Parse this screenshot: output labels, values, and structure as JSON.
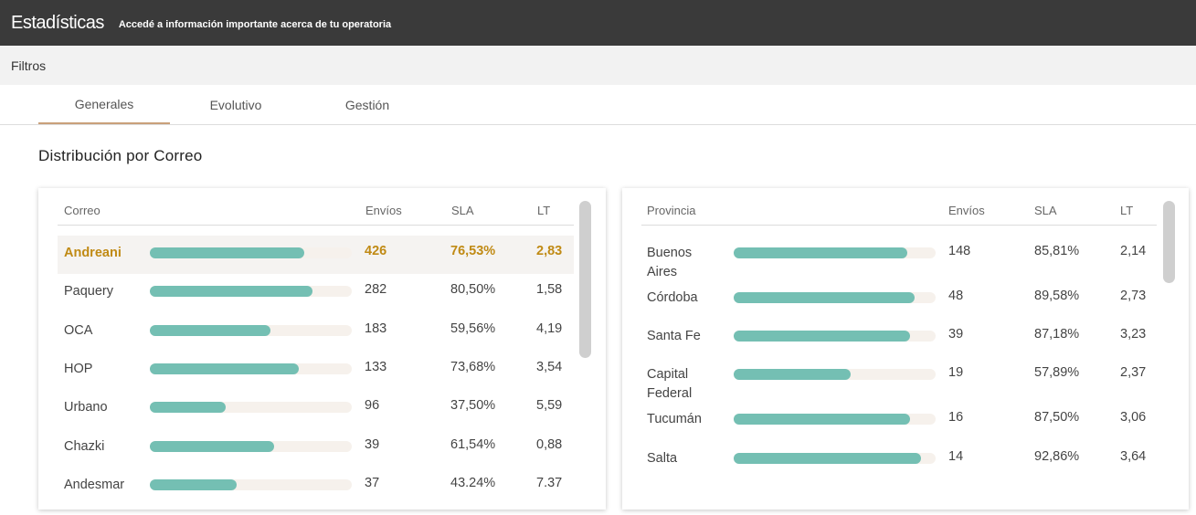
{
  "header": {
    "title": "Estadísticas",
    "subtitle": "Accedé a información importante acerca de tu operatoria"
  },
  "filters": {
    "label": "Filtros"
  },
  "tabs": [
    {
      "label": "Generales",
      "active": true
    },
    {
      "label": "Evolutivo",
      "active": false
    },
    {
      "label": "Gestión",
      "active": false
    }
  ],
  "section": {
    "title": "Distribución por Correo"
  },
  "colors": {
    "bar_fill": "#74bfb3",
    "bar_track": "#f6f1ec",
    "highlight_text": "#c08a14",
    "tab_underline": "#c9a07a"
  },
  "correo_table": {
    "headers": {
      "name": "Correo",
      "envios": "Envíos",
      "sla": "SLA",
      "lt": "LT"
    },
    "rows": [
      {
        "name": "Andreani",
        "fill": 0.765,
        "envios": "426",
        "sla": "76,53%",
        "lt": "2,83",
        "highlight": true
      },
      {
        "name": "Paquery",
        "fill": 0.805,
        "envios": "282",
        "sla": "80,50%",
        "lt": "1,58"
      },
      {
        "name": "OCA",
        "fill": 0.596,
        "envios": "183",
        "sla": "59,56%",
        "lt": "4,19"
      },
      {
        "name": "HOP",
        "fill": 0.737,
        "envios": "133",
        "sla": "73,68%",
        "lt": "3,54"
      },
      {
        "name": "Urbano",
        "fill": 0.375,
        "envios": "96",
        "sla": "37,50%",
        "lt": "5,59"
      },
      {
        "name": "Chazki",
        "fill": 0.615,
        "envios": "39",
        "sla": "61,54%",
        "lt": "0,88"
      },
      {
        "name": "Andesmar",
        "fill": 0.432,
        "envios": "37",
        "sla": "43.24%",
        "lt": "7.37"
      }
    ]
  },
  "provincia_table": {
    "headers": {
      "name": "Provincia",
      "envios": "Envíos",
      "sla": "SLA",
      "lt": "LT"
    },
    "rows": [
      {
        "name": "Buenos Aires",
        "fill": 0.858,
        "envios": "148",
        "sla": "85,81%",
        "lt": "2,14"
      },
      {
        "name": "Córdoba",
        "fill": 0.896,
        "envios": "48",
        "sla": "89,58%",
        "lt": "2,73"
      },
      {
        "name": "Santa Fe",
        "fill": 0.872,
        "envios": "39",
        "sla": "87,18%",
        "lt": "3,23"
      },
      {
        "name": "Capital Federal",
        "fill": 0.579,
        "envios": "19",
        "sla": "57,89%",
        "lt": "2,37"
      },
      {
        "name": "Tucumán",
        "fill": 0.875,
        "envios": "16",
        "sla": "87,50%",
        "lt": "3,06"
      },
      {
        "name": "Salta",
        "fill": 0.929,
        "envios": "14",
        "sla": "92,86%",
        "lt": "3,64"
      }
    ]
  }
}
